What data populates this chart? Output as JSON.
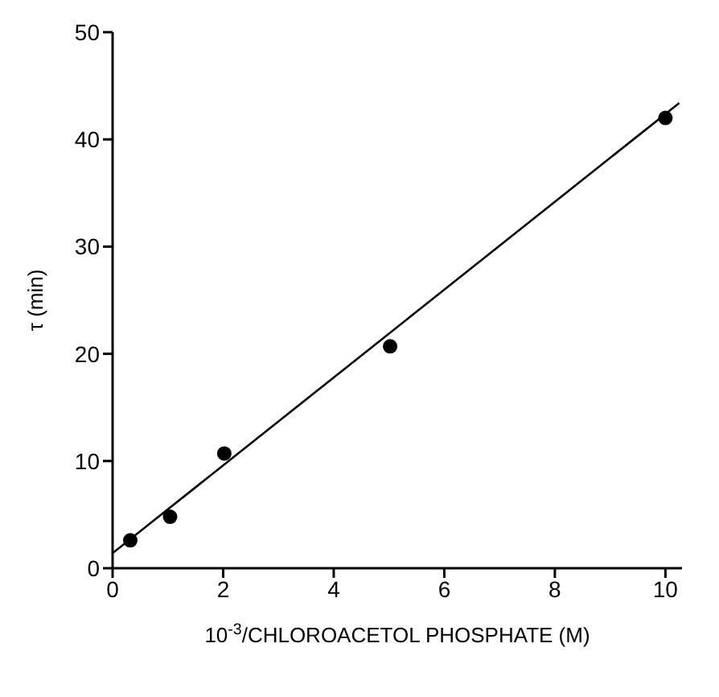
{
  "chart_data": {
    "type": "scatter",
    "xlabel": "10$^{-3}$/CHLOROACETOL PHOSPHATE (M)",
    "ylabel": "τ (min)",
    "series": [
      {
        "color": "#000000",
        "x": [
          0.32,
          1.04,
          2.02,
          5.02,
          10.0
        ],
        "values": [
          2.6,
          4.8,
          10.7,
          20.7,
          42.0
        ]
      },
      {
        "type": "line",
        "marker": "none",
        "color": "#000000",
        "x": [
          0.0,
          10.25
        ],
        "values": [
          1.4,
          43.4
        ]
      }
    ],
    "marker": "circle",
    "xlim": [
      0,
      10.3
    ],
    "xticks": [
      0,
      2,
      4,
      6,
      8,
      10
    ],
    "ylim": [
      0,
      50
    ],
    "yticks": [
      0,
      10,
      20,
      30,
      40,
      50
    ],
    "grid": false,
    "legend": false
  }
}
